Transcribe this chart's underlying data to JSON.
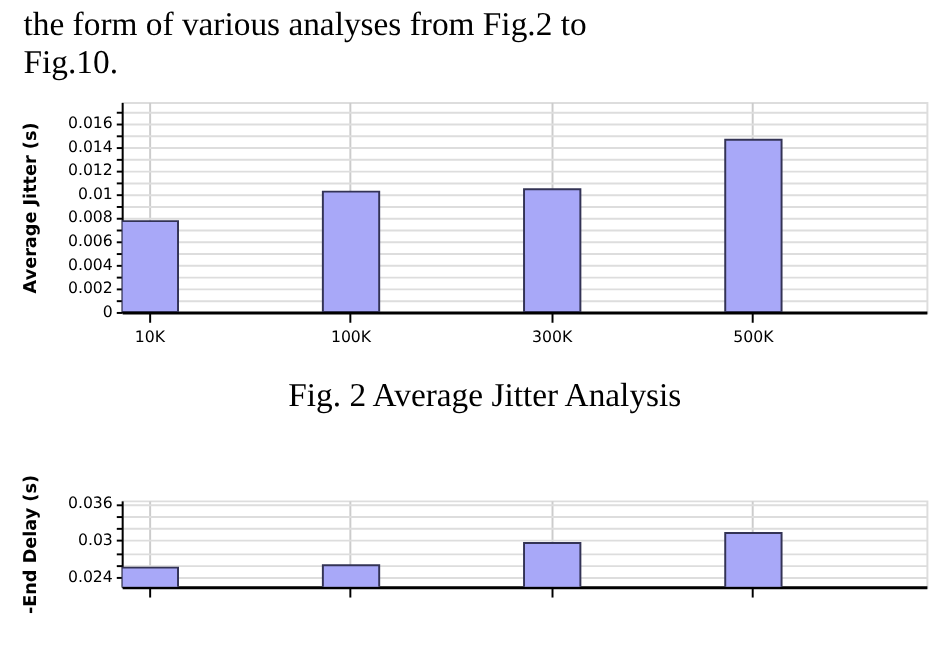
{
  "chart_data": [
    {
      "type": "bar",
      "ylabel": "Average Jitter (s)",
      "categories": [
        "10K",
        "100K",
        "300K",
        "500K"
      ],
      "values": [
        0.0077,
        0.0102,
        0.0104,
        0.0146
      ],
      "color": "#a8a8f8",
      "ylim": [
        0,
        0.0178
      ],
      "yticks": [
        0,
        {
          "value": 0.001,
          "label": null
        },
        0.002,
        {
          "value": 0.003,
          "label": null
        },
        0.004,
        {
          "value": 0.005,
          "label": null
        },
        0.006,
        {
          "value": 0.007,
          "label": null
        },
        0.008,
        {
          "value": 0.009,
          "label": null
        },
        0.01,
        {
          "value": 0.011,
          "label": null
        },
        0.012,
        {
          "value": 0.013,
          "label": null
        },
        0.014,
        {
          "value": 0.015,
          "label": null
        },
        0.016,
        {
          "value": 0.017,
          "label": null
        }
      ],
      "grid": true,
      "annotations": [
        "the form of various analyses from Fig.2 to Fig.10.",
        "Fig. 2 Average Jitter Analysis"
      ]
    },
    {
      "type": "bar",
      "ylabel": "-End Delay (s)",
      "categories": [
        null,
        null,
        null,
        null
      ],
      "values": [
        0.0256,
        0.026,
        0.0296,
        0.0312
      ],
      "color": "#a8a8f8",
      "ylim": [
        0.0225,
        0.0365
      ],
      "yticks": [
        0.024,
        {
          "value": 0.026,
          "label": null
        },
        {
          "value": 0.028,
          "label": null
        },
        0.03,
        {
          "value": 0.032,
          "label": null
        },
        {
          "value": 0.034,
          "label": null
        },
        0.036
      ],
      "grid": true,
      "tick_labels": "y"
    }
  ]
}
